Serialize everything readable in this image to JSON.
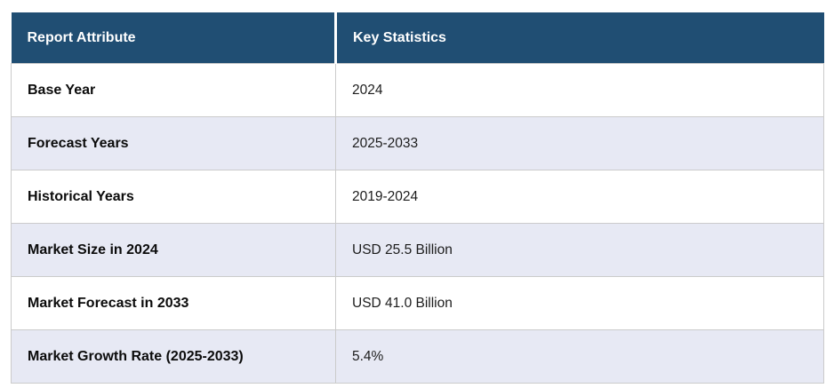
{
  "chart_data": {
    "type": "table",
    "columns": [
      "Report Attribute",
      "Key Statistics"
    ],
    "rows": [
      [
        "Base Year",
        "2024"
      ],
      [
        "Forecast Years",
        "2025-2033"
      ],
      [
        "Historical Years",
        "2019-2024"
      ],
      [
        "Market Size in 2024",
        "USD 25.5 Billion"
      ],
      [
        "Market Forecast in 2033",
        "USD 41.0 Billion"
      ],
      [
        "Market Growth Rate (2025-2033)",
        "5.4%"
      ]
    ]
  },
  "colors": {
    "header_bg": "#204E73",
    "header_text": "#FFFFFF",
    "alt_row_bg": "#E7E9F4",
    "row_bg": "#FFFFFF",
    "border": "#CBCBCB",
    "label_text": "#0B0B0B",
    "value_text": "#1C1C1C"
  }
}
